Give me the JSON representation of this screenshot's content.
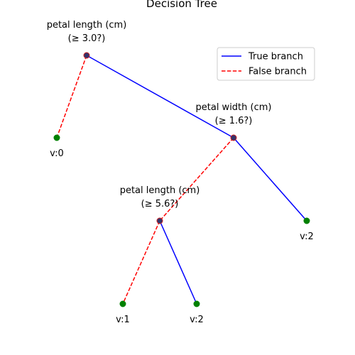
{
  "diagram": {
    "title": "Decision Tree",
    "colors": {
      "true_branch": "#0000ff",
      "false_branch": "#ff0000",
      "leaf": "#008000",
      "node_fill": "#33336b",
      "node_edge": "#cc2222"
    },
    "legend": {
      "placement": "upper-right",
      "items": [
        {
          "label": "True branch",
          "style": "solid",
          "color": "#0000ff"
        },
        {
          "label": "False branch",
          "style": "dashed",
          "color": "#ff0000"
        }
      ]
    },
    "nodes": [
      {
        "id": "n0",
        "kind": "split",
        "feature": "petal length (cm)",
        "condition": "(≥ 3.0?)"
      },
      {
        "id": "n1",
        "kind": "leaf",
        "label": "v:0"
      },
      {
        "id": "n2",
        "kind": "split",
        "feature": "petal width (cm)",
        "condition": "(≥ 1.6?)"
      },
      {
        "id": "n3",
        "kind": "split",
        "feature": "petal length (cm)",
        "condition": "(≥ 5.6?)"
      },
      {
        "id": "n4",
        "kind": "leaf",
        "label": "v:2"
      },
      {
        "id": "n5",
        "kind": "leaf",
        "label": "v:1"
      },
      {
        "id": "n6",
        "kind": "leaf",
        "label": "v:2"
      }
    ],
    "edges": [
      {
        "from": "n0",
        "to": "n1",
        "branch": "false"
      },
      {
        "from": "n0",
        "to": "n2",
        "branch": "true"
      },
      {
        "from": "n2",
        "to": "n3",
        "branch": "false"
      },
      {
        "from": "n2",
        "to": "n4",
        "branch": "true"
      },
      {
        "from": "n3",
        "to": "n5",
        "branch": "false"
      },
      {
        "from": "n3",
        "to": "n6",
        "branch": "true"
      }
    ]
  }
}
